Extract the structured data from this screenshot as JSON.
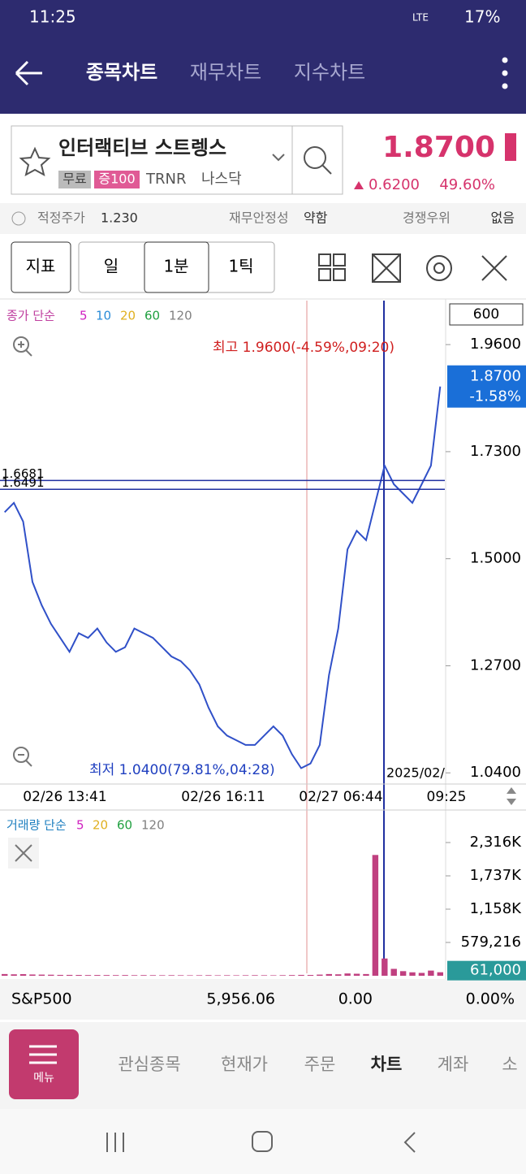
{
  "status_bar": {
    "time": "11:25",
    "network": "LTE",
    "battery": "17%"
  },
  "nav": {
    "tabs": [
      "종목차트",
      "재무차트",
      "지수차트"
    ]
  },
  "stock": {
    "name": "인터랙티브 스트렝스",
    "tags": [
      "무료",
      "증100",
      "TRNR",
      "나스닥"
    ],
    "price": "1.8700",
    "change": "0.6200",
    "change_pct": "49.60%"
  },
  "info": {
    "items": [
      {
        "label": "적정주가",
        "value": "1.230"
      },
      {
        "label": "재무안정성",
        "value": "약함"
      },
      {
        "label": "경쟁우위",
        "value": "없음"
      }
    ]
  },
  "toolbar": {
    "buttons": [
      "지표",
      "일",
      "1분",
      "1틱"
    ]
  },
  "chart_data": [
    {
      "type": "line",
      "legend_title": "종가 단순",
      "ma_legend": [
        {
          "label": "5",
          "color": "#d020c0"
        },
        {
          "label": "10",
          "color": "#2a8cd8"
        },
        {
          "label": "20",
          "color": "#e0b020"
        },
        {
          "label": "60",
          "color": "#20a040"
        },
        {
          "label": "120",
          "color": "#808080"
        }
      ],
      "count_box": "600",
      "ylim": [
        1.016,
        2.051
      ],
      "yticks": [
        {
          "value": 1.96,
          "label": "1.9600"
        },
        {
          "value": 1.73,
          "label": "1.7300"
        },
        {
          "value": 1.5,
          "label": "1.5000"
        },
        {
          "value": 1.27,
          "label": "1.2700"
        },
        {
          "value": 1.04,
          "label": "1.0400"
        }
      ],
      "current": {
        "value": 1.87,
        "label": "1.8700",
        "change": "-1.58%"
      },
      "high_note": "최고 1.9600(-4.59%,09:20)",
      "low_note": "최저 1.0400(79.81%,04:28)",
      "hlines": [
        {
          "value": 1.6681,
          "label": "1.6681"
        },
        {
          "value": 1.6491,
          "label": "1.6491"
        }
      ],
      "x_labels": [
        "02/26 13:41",
        "02/26 16:11",
        "02/27 06:44",
        "09:25"
      ],
      "date_label": "2025/02/",
      "series": [
        {
          "color": "#3050c8",
          "values": [
            1.6,
            1.62,
            1.58,
            1.45,
            1.4,
            1.36,
            1.33,
            1.3,
            1.34,
            1.33,
            1.35,
            1.32,
            1.3,
            1.31,
            1.35,
            1.34,
            1.33,
            1.31,
            1.29,
            1.28,
            1.26,
            1.23,
            1.18,
            1.14,
            1.12,
            1.11,
            1.1,
            1.1,
            1.12,
            1.14,
            1.12,
            1.08,
            1.05,
            1.06,
            1.1,
            1.25,
            1.35,
            1.52,
            1.56,
            1.54,
            1.62,
            1.7,
            1.66,
            1.64,
            1.62,
            1.66,
            1.7,
            1.87
          ]
        }
      ]
    },
    {
      "type": "bar",
      "legend_title": "거래량 단순",
      "ma_legend": [
        {
          "label": "5",
          "color": "#d020c0"
        },
        {
          "label": "20",
          "color": "#e0b020"
        },
        {
          "label": "60",
          "color": "#20a040"
        },
        {
          "label": "120",
          "color": "#808080"
        }
      ],
      "ylim": [
        0,
        2839000
      ],
      "yticks": [
        {
          "value": 2316000,
          "label": "2,316K"
        },
        {
          "value": 1737000,
          "label": "1,737K"
        },
        {
          "value": 1158000,
          "label": "1,158K"
        },
        {
          "value": 579216,
          "label": "579,216"
        }
      ],
      "current": {
        "value": 61000,
        "label": "61,000"
      },
      "series": [
        {
          "color": "#c04080",
          "values": [
            30000,
            25000,
            28000,
            22000,
            20000,
            18000,
            15000,
            15000,
            14000,
            12000,
            13000,
            12000,
            11000,
            12000,
            10000,
            11000,
            10000,
            9000,
            10000,
            9000,
            8000,
            9000,
            10000,
            8000,
            9000,
            8000,
            9000,
            10000,
            9000,
            8000,
            10000,
            12000,
            15000,
            14000,
            20000,
            30000,
            25000,
            40000,
            35000,
            30000,
            2100000,
            300000,
            120000,
            80000,
            60000,
            50000,
            90000,
            61000
          ]
        }
      ]
    }
  ],
  "index_bar": {
    "name": "S&P500",
    "value": "5,956.06",
    "change": "0.00",
    "change_pct": "0.00%"
  },
  "bottom_nav": {
    "menu": "메뉴",
    "items": [
      "관심종목",
      "현재가",
      "주문",
      "차트",
      "계좌",
      "소"
    ]
  }
}
